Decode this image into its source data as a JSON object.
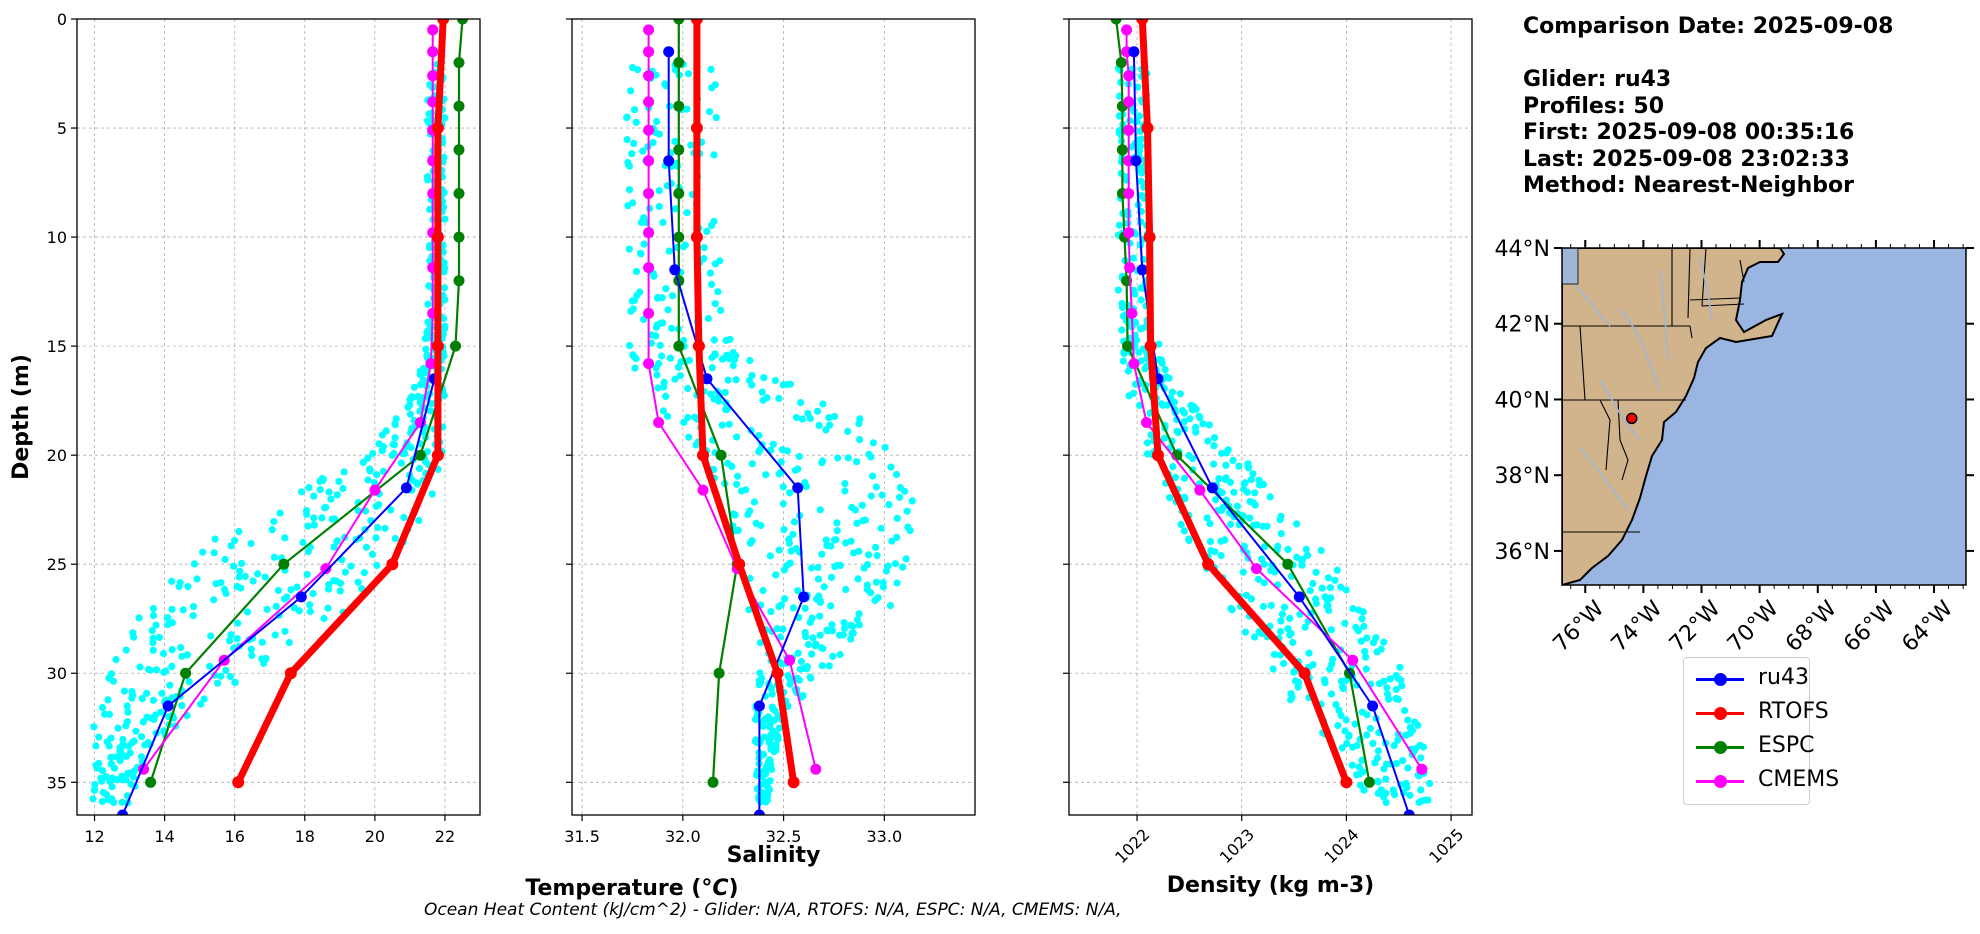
{
  "info": {
    "comparison_date": "Comparison Date: 2025-09-08",
    "glider": "Glider: ru43",
    "profiles": "Profiles: 50",
    "first": "First: 2025-09-08 00:35:16",
    "last": "Last: 2025-09-08 23:02:33",
    "method": "Method: Nearest-Neighbor"
  },
  "footer": "Ocean Heat Content (kJ/cm^2) - Glider: N/A,  RTOFS: N/A,  ESPC: N/A,  CMEMS: N/A,",
  "colors": {
    "ru43": "#0000ff",
    "RTOFS": "#ff0000",
    "ESPC": "#008000",
    "CMEMS": "#ff00ff",
    "glider_scatter": "#00ffff",
    "land": "#d2b48c",
    "ocean": "#9ab5e1",
    "river": "#9fb6d6"
  },
  "legend": [
    {
      "name": "ru43",
      "color": "#0000ff"
    },
    {
      "name": "RTOFS",
      "color": "#ff0000"
    },
    {
      "name": "ESPC",
      "color": "#008000"
    },
    {
      "name": "CMEMS",
      "color": "#ff00ff"
    }
  ],
  "chart_data": [
    {
      "type": "line",
      "xlabel": "Temperature (°C)",
      "ylabel": "Depth (m)",
      "xlim": [
        11.5,
        23
      ],
      "ylim": [
        36.5,
        0
      ],
      "xticks": [
        12,
        14,
        16,
        18,
        20,
        22
      ],
      "xtick_labels": [
        "12",
        "14",
        "16",
        "18",
        "20",
        "22"
      ],
      "yticks": [
        0,
        5,
        10,
        15,
        20,
        25,
        30,
        35
      ],
      "ytick_labels": [
        "0",
        "5",
        "10",
        "15",
        "20",
        "25",
        "30",
        "35"
      ],
      "grid": true,
      "glider_scatter_profile": {
        "depth": [
          2,
          6,
          10,
          14,
          16,
          18,
          20,
          22,
          24,
          26,
          28,
          30,
          32,
          34,
          36
        ],
        "min": [
          21.5,
          21.5,
          21.5,
          21.5,
          21.3,
          20.8,
          19.6,
          17.5,
          15.2,
          14,
          13,
          12.3,
          12,
          11.9,
          11.9
        ],
        "max": [
          22,
          22,
          22,
          22,
          22,
          22,
          22,
          21.6,
          21,
          20.5,
          18.8,
          16.5,
          14.7,
          13.5,
          13
        ],
        "points_per_level": 40
      },
      "series": [
        {
          "name": "ru43",
          "depth": [
            16.5,
            21.5,
            26.5,
            31.5,
            36.5
          ],
          "values": [
            21.7,
            20.9,
            17.9,
            14.1,
            12.8
          ]
        },
        {
          "name": "RTOFS",
          "depth": [
            0,
            5,
            10,
            15,
            20,
            25,
            30,
            35
          ],
          "values": [
            21.95,
            21.8,
            21.8,
            21.8,
            21.8,
            20.5,
            17.6,
            16.1
          ]
        },
        {
          "name": "ESPC",
          "depth": [
            0,
            2,
            4,
            6,
            8,
            10,
            12,
            15,
            20,
            25,
            30,
            35
          ],
          "values": [
            22.5,
            22.4,
            22.4,
            22.4,
            22.4,
            22.4,
            22.4,
            22.3,
            21.3,
            17.4,
            14.6,
            13.6
          ]
        },
        {
          "name": "CMEMS",
          "depth": [
            0.5,
            1.5,
            2.6,
            3.8,
            5.1,
            6.5,
            8,
            9.8,
            11.4,
            13.5,
            15.8,
            18.5,
            21.6,
            25.2,
            29.4,
            34.4
          ],
          "values": [
            21.65,
            21.65,
            21.65,
            21.65,
            21.65,
            21.65,
            21.65,
            21.65,
            21.65,
            21.65,
            21.6,
            21.3,
            20,
            18.6,
            15.7,
            13.4
          ]
        }
      ]
    },
    {
      "type": "line",
      "xlabel": "Salinity",
      "xlim": [
        31.45,
        33.45
      ],
      "ylim": [
        36.5,
        0
      ],
      "xticks": [
        31.5,
        32,
        32.5,
        33
      ],
      "xtick_labels": [
        "31.5",
        "32.0",
        "32.5",
        "33.0"
      ],
      "yticks": [
        0,
        5,
        10,
        15,
        20,
        25,
        30,
        35
      ],
      "grid": true,
      "glider_scatter_profile": {
        "depth": [
          2,
          6,
          10,
          14,
          16,
          18,
          20,
          22,
          24,
          26,
          28,
          30,
          32,
          34,
          36
        ],
        "min": [
          31.72,
          31.72,
          31.72,
          31.72,
          31.75,
          31.9,
          32.1,
          32.2,
          32.25,
          32.3,
          32.33,
          32.35,
          32.36,
          32.36,
          32.37
        ],
        "max": [
          32.18,
          32.18,
          32.18,
          32.2,
          32.45,
          32.85,
          33.05,
          33.15,
          33.2,
          33.1,
          32.95,
          32.7,
          32.5,
          32.45,
          32.42
        ],
        "points_per_level": 40
      },
      "series": [
        {
          "name": "ru43",
          "depth": [
            1.5,
            6.5,
            11.5,
            16.5,
            21.5,
            26.5,
            31.5,
            36.5
          ],
          "values": [
            31.93,
            31.93,
            31.96,
            32.12,
            32.57,
            32.6,
            32.38,
            32.38
          ]
        },
        {
          "name": "RTOFS",
          "depth": [
            0,
            5,
            10,
            15,
            20,
            25,
            30,
            35
          ],
          "values": [
            32.07,
            32.07,
            32.07,
            32.08,
            32.1,
            32.28,
            32.47,
            32.55
          ]
        },
        {
          "name": "ESPC",
          "depth": [
            0,
            2,
            4,
            6,
            8,
            10,
            12,
            15,
            20,
            25,
            30,
            35
          ],
          "values": [
            31.98,
            31.98,
            31.98,
            31.98,
            31.98,
            31.98,
            31.98,
            31.98,
            32.19,
            32.27,
            32.18,
            32.15
          ]
        },
        {
          "name": "CMEMS",
          "depth": [
            0.5,
            1.5,
            2.6,
            3.8,
            5.1,
            6.5,
            8,
            9.8,
            11.4,
            13.5,
            15.8,
            18.5,
            21.6,
            25.2,
            29.4,
            34.4
          ],
          "values": [
            31.83,
            31.83,
            31.83,
            31.83,
            31.83,
            31.83,
            31.83,
            31.83,
            31.83,
            31.83,
            31.83,
            31.88,
            32.1,
            32.27,
            32.53,
            32.66
          ]
        }
      ]
    },
    {
      "type": "line",
      "xlabel": "Density (kg m-3)",
      "xlim": [
        1021.35,
        1025.2
      ],
      "ylim": [
        36.5,
        0
      ],
      "xticks": [
        1022,
        1023,
        1024,
        1025
      ],
      "xtick_labels": [
        "1022",
        "1023",
        "1024",
        "1025"
      ],
      "yticks": [
        0,
        5,
        10,
        15,
        20,
        25,
        30,
        35
      ],
      "grid": true,
      "glider_scatter_profile": {
        "depth": [
          2,
          6,
          10,
          14,
          16,
          18,
          20,
          22,
          24,
          26,
          28,
          30,
          32,
          34,
          36
        ],
        "min": [
          1021.82,
          1021.82,
          1021.82,
          1021.82,
          1021.85,
          1021.95,
          1022.1,
          1022.3,
          1022.5,
          1022.75,
          1023,
          1023.25,
          1023.6,
          1024,
          1024.2
        ],
        "max": [
          1022.1,
          1022.1,
          1022.1,
          1022.15,
          1022.3,
          1022.6,
          1023,
          1023.35,
          1023.7,
          1024.05,
          1024.3,
          1024.55,
          1024.7,
          1024.8,
          1024.8
        ],
        "points_per_level": 40
      },
      "series": [
        {
          "name": "ru43",
          "depth": [
            1.5,
            6.5,
            11.5,
            16.5,
            21.5,
            26.5,
            31.5,
            36.5
          ],
          "values": [
            1021.97,
            1021.99,
            1022.05,
            1022.2,
            1022.72,
            1023.55,
            1024.25,
            1024.6
          ]
        },
        {
          "name": "RTOFS",
          "depth": [
            0,
            5,
            10,
            15,
            20,
            25,
            30,
            35
          ],
          "values": [
            1022.05,
            1022.1,
            1022.12,
            1022.13,
            1022.2,
            1022.68,
            1023.6,
            1024
          ]
        },
        {
          "name": "ESPC",
          "depth": [
            0,
            2,
            4,
            6,
            8,
            10,
            12,
            15,
            20,
            25,
            30,
            35
          ],
          "values": [
            1021.8,
            1021.85,
            1021.86,
            1021.86,
            1021.86,
            1021.88,
            1021.9,
            1021.91,
            1022.38,
            1023.44,
            1024.03,
            1024.22
          ]
        },
        {
          "name": "CMEMS",
          "depth": [
            0.5,
            1.5,
            2.6,
            3.8,
            5.1,
            6.5,
            8,
            9.8,
            11.4,
            13.5,
            15.8,
            18.5,
            21.6,
            25.2,
            29.4,
            34.4
          ],
          "values": [
            1021.9,
            1021.9,
            1021.92,
            1021.92,
            1021.92,
            1021.92,
            1021.92,
            1021.92,
            1021.93,
            1021.95,
            1021.97,
            1022.09,
            1022.6,
            1023.14,
            1024.06,
            1024.72
          ]
        }
      ]
    }
  ],
  "map": {
    "xtick_labels": [
      "76°W",
      "74°W",
      "72°W",
      "70°W",
      "68°W",
      "66°W",
      "64°W"
    ],
    "xticks": [
      -76,
      -74,
      -72,
      -70,
      -68,
      -66,
      -64
    ],
    "ytick_labels": [
      "44°N",
      "42°N",
      "40°N",
      "38°N",
      "36°N"
    ],
    "yticks": [
      44,
      42,
      40,
      38,
      36
    ],
    "lon_range": [
      -76.8,
      -62.9
    ],
    "lat_range": [
      35.1,
      44
    ],
    "glider_position": {
      "lon": -74.4,
      "lat": 39.5
    }
  }
}
